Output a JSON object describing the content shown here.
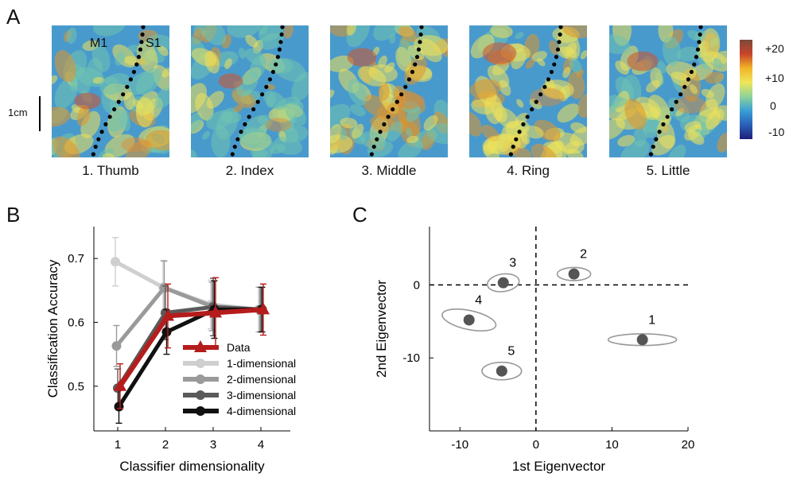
{
  "panels": {
    "a": "A",
    "b": "B",
    "c": "C"
  },
  "panel_a": {
    "region_labels": {
      "m1": "M1",
      "s1": "S1"
    },
    "scale_bar_label": "1cm",
    "fingers": [
      "1. Thumb",
      "2. Index",
      "3. Middle",
      "4. Ring",
      "5. Little"
    ],
    "colorbar_ticks": [
      "+20",
      "+10",
      "0",
      "-10"
    ],
    "colorbar_colors": [
      "#7a4a3a",
      "#c8442a",
      "#f1b428",
      "#efe65a",
      "#8ed39a",
      "#3a9fd6",
      "#2a5fb8",
      "#1d1f7a"
    ],
    "activation_intensity": [
      0.55,
      0.45,
      0.7,
      0.95,
      0.8
    ]
  },
  "chart_data": [
    {
      "type": "line",
      "xlabel": "Classifier dimensionality",
      "ylabel": "Classification Accuracy",
      "x": [
        1,
        2,
        3,
        4
      ],
      "xticks": [
        "1",
        "2",
        "3",
        "4"
      ],
      "yticks": [
        "0.5",
        "0.6",
        "0.7"
      ],
      "ylim": [
        0.43,
        0.75
      ],
      "legend_position": "lower-right",
      "series": [
        {
          "name": "1-dimensional",
          "values": [
            0.695,
            0.655,
            0.628,
            0.62
          ],
          "errors": [
            0.038,
            0.042,
            0.038,
            0.035
          ],
          "color": "#cfcfcf",
          "marker": "circle"
        },
        {
          "name": "2-dimensional",
          "values": [
            0.563,
            0.654,
            0.625,
            0.62
          ],
          "errors": [
            0.032,
            0.042,
            0.038,
            0.035
          ],
          "color": "#9a9a9a",
          "marker": "circle"
        },
        {
          "name": "3-dimensional",
          "values": [
            0.497,
            0.615,
            0.624,
            0.62
          ],
          "errors": [
            0.03,
            0.042,
            0.045,
            0.035
          ],
          "color": "#5a5a5a",
          "marker": "circle"
        },
        {
          "name": "4-dimensional",
          "values": [
            0.468,
            0.585,
            0.62,
            0.62
          ],
          "errors": [
            0.026,
            0.035,
            0.045,
            0.035
          ],
          "color": "#111111",
          "marker": "circle"
        },
        {
          "name": "Data",
          "values": [
            0.5,
            0.61,
            0.615,
            0.62
          ],
          "errors": [
            0.035,
            0.05,
            0.055,
            0.04
          ],
          "color": "#b51c1c",
          "marker": "triangle"
        }
      ]
    },
    {
      "type": "scatter",
      "xlabel": "1st Eigenvector",
      "ylabel": "2nd Eigenvector",
      "xticks": [
        "-10",
        "0",
        "10",
        "20"
      ],
      "yticks": [
        "-10",
        "0"
      ],
      "xlim": [
        -14,
        20
      ],
      "ylim": [
        -20,
        8
      ],
      "points": [
        {
          "label": "1",
          "x": 14,
          "y": -7.5,
          "rx": 4.5,
          "ry": 0.8,
          "angle": 0
        },
        {
          "label": "2",
          "x": 5,
          "y": 1.5,
          "rx": 2.2,
          "ry": 0.9,
          "angle": 0
        },
        {
          "label": "3",
          "x": -4.3,
          "y": 0.3,
          "rx": 2.1,
          "ry": 1.2,
          "angle": -8
        },
        {
          "label": "4",
          "x": -8.8,
          "y": -4.8,
          "rx": 3.6,
          "ry": 1.3,
          "angle": 12
        },
        {
          "label": "5",
          "x": -4.5,
          "y": -11.8,
          "rx": 2.6,
          "ry": 1.2,
          "angle": 0
        }
      ]
    }
  ]
}
